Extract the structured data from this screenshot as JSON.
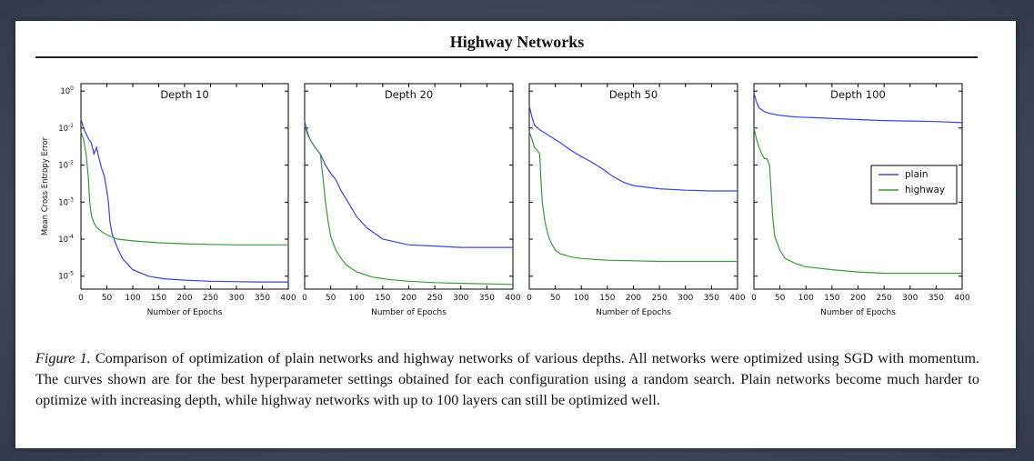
{
  "header": {
    "title": "Highway Networks"
  },
  "caption": {
    "label": "Figure 1.",
    "text": " Comparison of optimization of plain networks and highway networks of various depths. All networks were optimized using SGD with momentum. The curves shown are for the best hyperparameter settings obtained for each configuration using a random search. Plain networks become much harder to optimize with increasing depth, while highway networks with up to 100 layers can still be optimized well."
  },
  "colors": {
    "plain": "#3b43e0",
    "highway": "#3a9a3a"
  },
  "chart_data": [
    {
      "type": "line",
      "title": "Depth 10",
      "xlabel": "Number of Epochs",
      "ylabel": "Mean Cross Entropy Error",
      "xlim": [
        0,
        400
      ],
      "ylim": [
        5e-06,
        1
      ],
      "yscale": "log",
      "xticks": [
        0,
        50,
        100,
        150,
        200,
        250,
        300,
        350,
        400
      ],
      "yticks": [
        {
          "value": 1,
          "base": "10",
          "exp": "0"
        },
        {
          "value": 0.1,
          "base": "10",
          "exp": "-1"
        },
        {
          "value": 0.01,
          "base": "10",
          "exp": "-2"
        },
        {
          "value": 0.001,
          "base": "10",
          "exp": "-3"
        },
        {
          "value": 0.0001,
          "base": "10",
          "exp": "-4"
        },
        {
          "value": 1e-05,
          "base": "10",
          "exp": "-5"
        }
      ],
      "series": [
        {
          "name": "plain",
          "x": [
            0,
            5,
            10,
            15,
            20,
            25,
            30,
            35,
            40,
            45,
            50,
            53,
            56,
            60,
            70,
            80,
            100,
            130,
            160,
            200,
            250,
            300,
            350,
            400
          ],
          "y": [
            0.18,
            0.1,
            0.07,
            0.05,
            0.04,
            0.02,
            0.03,
            0.015,
            0.008,
            0.005,
            0.002,
            0.001,
            0.0003,
            0.00014,
            6e-05,
            3e-05,
            1.5e-05,
            1e-05,
            8.5e-06,
            7.8e-06,
            7.3e-06,
            7.1e-06,
            7e-06,
            7e-06
          ]
        },
        {
          "name": "highway",
          "x": [
            0,
            5,
            10,
            14,
            17,
            20,
            25,
            30,
            40,
            50,
            70,
            100,
            150,
            200,
            250,
            300,
            350,
            400
          ],
          "y": [
            0.08,
            0.05,
            0.02,
            0.005,
            0.001,
            0.00045,
            0.00027,
            0.00021,
            0.00016,
            0.00013,
            0.0001,
            9e-05,
            8e-05,
            7.5e-05,
            7.2e-05,
            7e-05,
            7e-05,
            7e-05
          ]
        }
      ]
    },
    {
      "type": "line",
      "title": "Depth 20",
      "xlabel": "Number of Epochs",
      "xlim": [
        0,
        400
      ],
      "ylim": [
        5e-06,
        1
      ],
      "yscale": "log",
      "xticks": [
        0,
        50,
        100,
        150,
        200,
        250,
        300,
        350,
        400
      ],
      "series": [
        {
          "name": "plain",
          "x": [
            0,
            5,
            10,
            20,
            30,
            40,
            50,
            60,
            70,
            80,
            90,
            100,
            120,
            150,
            200,
            250,
            300,
            350,
            400
          ],
          "y": [
            0.15,
            0.08,
            0.05,
            0.03,
            0.02,
            0.01,
            0.006,
            0.004,
            0.002,
            0.0012,
            0.0007,
            0.0004,
            0.0002,
            0.0001,
            7e-05,
            6.5e-05,
            6e-05,
            6e-05,
            6e-05
          ]
        },
        {
          "name": "highway",
          "x": [
            0,
            5,
            10,
            20,
            30,
            35,
            40,
            45,
            50,
            60,
            70,
            80,
            100,
            130,
            160,
            200,
            250,
            300,
            350,
            400
          ],
          "y": [
            0.12,
            0.07,
            0.05,
            0.03,
            0.02,
            0.005,
            0.001,
            0.0003,
            0.00012,
            5e-05,
            3e-05,
            2e-05,
            1.3e-05,
            9.5e-06,
            8.2e-06,
            7.3e-06,
            6.7e-06,
            6.4e-06,
            6.2e-06,
            6e-06
          ]
        }
      ]
    },
    {
      "type": "line",
      "title": "Depth 50",
      "xlabel": "Number of Epochs",
      "xlim": [
        0,
        400
      ],
      "ylim": [
        5e-06,
        1
      ],
      "yscale": "log",
      "xticks": [
        0,
        50,
        100,
        150,
        200,
        250,
        300,
        350,
        400
      ],
      "series": [
        {
          "name": "plain",
          "x": [
            0,
            5,
            10,
            20,
            40,
            60,
            80,
            100,
            120,
            140,
            160,
            180,
            200,
            250,
            300,
            350,
            400
          ],
          "y": [
            0.4,
            0.2,
            0.12,
            0.09,
            0.06,
            0.04,
            0.025,
            0.017,
            0.012,
            0.008,
            0.005,
            0.0035,
            0.0028,
            0.0023,
            0.0021,
            0.002,
            0.002
          ]
        },
        {
          "name": "highway",
          "x": [
            0,
            5,
            10,
            15,
            20,
            22,
            25,
            30,
            35,
            40,
            50,
            60,
            80,
            100,
            150,
            200,
            250,
            300,
            350,
            400
          ],
          "y": [
            0.08,
            0.05,
            0.03,
            0.025,
            0.02,
            0.005,
            0.001,
            0.0003,
            0.00015,
            9e-05,
            5e-05,
            4e-05,
            3.3e-05,
            3e-05,
            2.7e-05,
            2.6e-05,
            2.5e-05,
            2.5e-05,
            2.5e-05,
            2.5e-05
          ]
        }
      ]
    },
    {
      "type": "line",
      "title": "Depth 100",
      "xlabel": "Number of Epochs",
      "xlim": [
        0,
        400
      ],
      "ylim": [
        5e-06,
        1
      ],
      "yscale": "log",
      "xticks": [
        0,
        50,
        100,
        150,
        200,
        250,
        300,
        350,
        400
      ],
      "legend": {
        "position": "right",
        "entries": [
          "plain",
          "highway"
        ]
      },
      "series": [
        {
          "name": "plain",
          "x": [
            0,
            5,
            10,
            20,
            30,
            50,
            80,
            120,
            160,
            200,
            250,
            300,
            350,
            400
          ],
          "y": [
            0.9,
            0.5,
            0.35,
            0.28,
            0.25,
            0.22,
            0.2,
            0.19,
            0.18,
            0.17,
            0.16,
            0.155,
            0.15,
            0.14
          ]
        },
        {
          "name": "highway",
          "x": [
            0,
            5,
            10,
            15,
            20,
            25,
            30,
            33,
            36,
            40,
            50,
            60,
            80,
            100,
            150,
            200,
            250,
            300,
            350,
            400
          ],
          "y": [
            0.1,
            0.05,
            0.03,
            0.02,
            0.015,
            0.015,
            0.01,
            0.002,
            0.0004,
            0.00012,
            5e-05,
            3e-05,
            2.2e-05,
            1.8e-05,
            1.5e-05,
            1.3e-05,
            1.2e-05,
            1.2e-05,
            1.2e-05,
            1.2e-05
          ]
        }
      ]
    }
  ]
}
